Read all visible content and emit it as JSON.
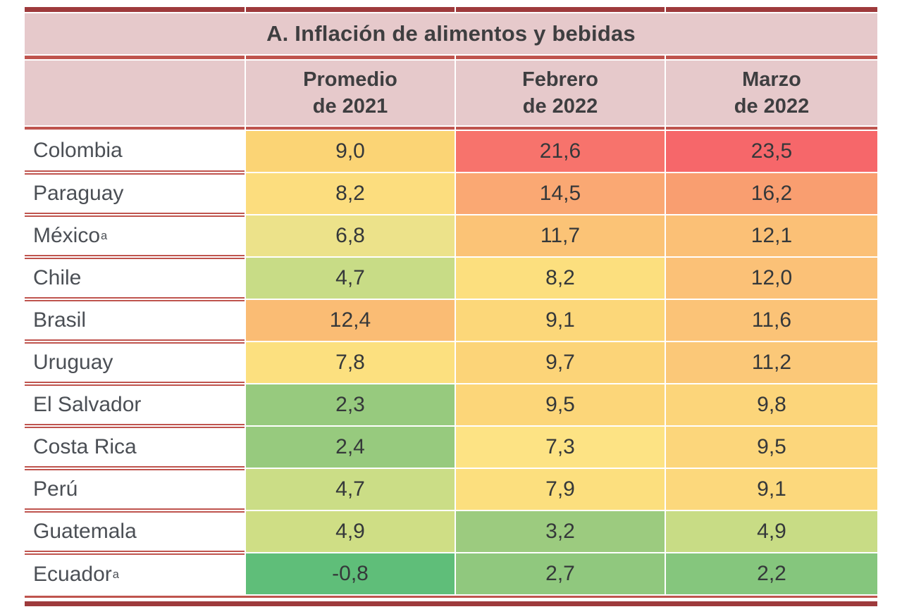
{
  "table": {
    "title": "A. Inflación de alimentos y bebidas",
    "columns": [
      {
        "line1": "Promedio",
        "line2": "de 2021"
      },
      {
        "line1": "Febrero",
        "line2": "de 2022"
      },
      {
        "line1": "Marzo",
        "line2": "de 2022"
      }
    ],
    "rows": [
      {
        "country": "Colombia",
        "sup": "",
        "display": [
          "9,0",
          "21,6",
          "23,5"
        ],
        "colors": [
          "#fbd475",
          "#f7736c",
          "#f6676a"
        ]
      },
      {
        "country": "Paraguay",
        "sup": "",
        "display": [
          "8,2",
          "14,5",
          "16,2"
        ],
        "colors": [
          "#fcdd7e",
          "#faa873",
          "#f99e70"
        ]
      },
      {
        "country": "México",
        "sup": "a",
        "display": [
          "6,8",
          "11,7",
          "12,1"
        ],
        "colors": [
          "#ece28a",
          "#fbc376",
          "#fbc076"
        ]
      },
      {
        "country": "Chile",
        "sup": "",
        "display": [
          "4,7",
          "8,2",
          "12,0"
        ],
        "colors": [
          "#c8dc86",
          "#fcdf7e",
          "#fbc177"
        ]
      },
      {
        "country": "Brasil",
        "sup": "",
        "display": [
          "12,4",
          "9,1",
          "11,6"
        ],
        "colors": [
          "#fabc74",
          "#fcd779",
          "#fbc377"
        ]
      },
      {
        "country": "Uruguay",
        "sup": "",
        "display": [
          "7,8",
          "9,7",
          "11,2"
        ],
        "colors": [
          "#fce07f",
          "#fcd478",
          "#fbc878"
        ]
      },
      {
        "country": "El Salvador",
        "sup": "",
        "display": [
          "2,3",
          "9,5",
          "9,8"
        ],
        "colors": [
          "#97ca7e",
          "#fcd679",
          "#fcd57a"
        ]
      },
      {
        "country": "Costa Rica",
        "sup": "",
        "display": [
          "2,4",
          "7,3",
          "9,5"
        ],
        "colors": [
          "#97ca7e",
          "#fde384",
          "#fcd67b"
        ]
      },
      {
        "country": "Perú",
        "sup": "",
        "display": [
          "4,7",
          "7,9",
          "9,1"
        ],
        "colors": [
          "#cbdd86",
          "#fcdf7e",
          "#fcd87c"
        ]
      },
      {
        "country": "Guatemala",
        "sup": "",
        "display": [
          "4,9",
          "3,2",
          "4,9"
        ],
        "colors": [
          "#cfde85",
          "#9ccb7f",
          "#c8dc85"
        ]
      },
      {
        "country": "Ecuador",
        "sup": "a",
        "display": [
          "-0,8",
          "2,7",
          "2,2"
        ],
        "colors": [
          "#5fbe79",
          "#90c87e",
          "#85c67d"
        ]
      }
    ]
  },
  "colors": {
    "header_pink": "#e6c9cb",
    "rose_line": "#bf544e",
    "dark_border": "#9e3a3c"
  },
  "chart_data": {
    "type": "heatmap",
    "title": "A. Inflación de alimentos y bebidas",
    "columns": [
      "Promedio de 2021",
      "Febrero de 2022",
      "Marzo de 2022"
    ],
    "rows": [
      "Colombia",
      "Paraguay",
      "México",
      "Chile",
      "Brasil",
      "Uruguay",
      "El Salvador",
      "Costa Rica",
      "Perú",
      "Guatemala",
      "Ecuador"
    ],
    "values": [
      [
        9.0,
        21.6,
        23.5
      ],
      [
        8.2,
        14.5,
        16.2
      ],
      [
        6.8,
        11.7,
        12.1
      ],
      [
        4.7,
        8.2,
        12.0
      ],
      [
        12.4,
        9.1,
        11.6
      ],
      [
        7.8,
        9.7,
        11.2
      ],
      [
        2.3,
        9.5,
        9.8
      ],
      [
        2.4,
        7.3,
        9.5
      ],
      [
        4.7,
        7.9,
        9.1
      ],
      [
        4.9,
        3.2,
        4.9
      ],
      [
        -0.8,
        2.7,
        2.2
      ]
    ],
    "value_format": "decimal-comma, one decimal place",
    "color_scale": "green (low) → yellow → red (high)",
    "superscript_rows": [
      "México",
      "Ecuador"
    ],
    "legend": "none"
  }
}
